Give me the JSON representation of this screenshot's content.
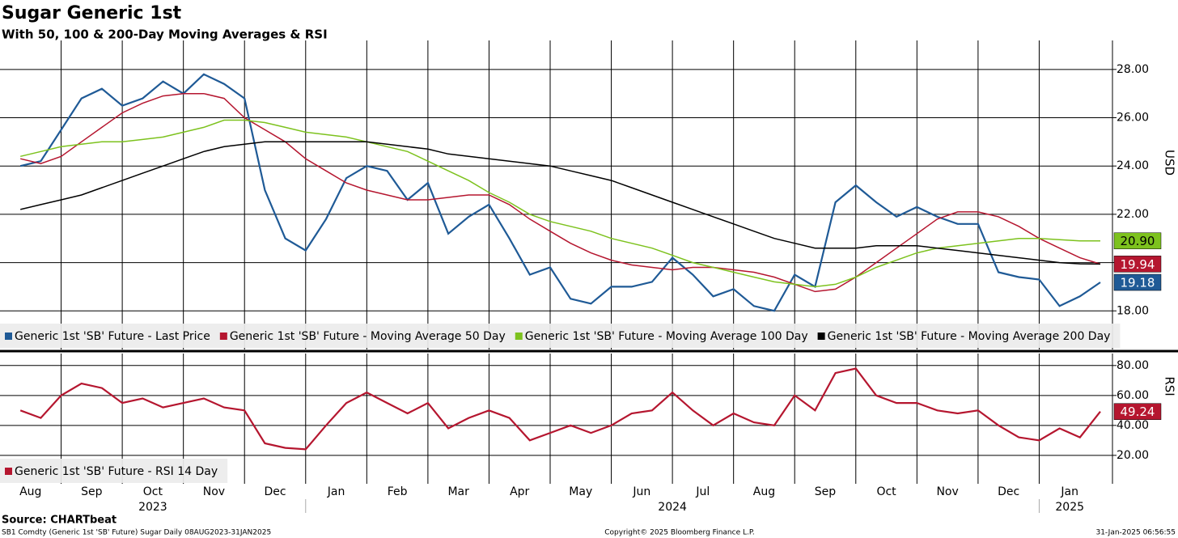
{
  "chart_data": [
    {
      "type": "line",
      "title": "Sugar Generic 1st",
      "subtitle": "With 50, 100 & 200-Day Moving Averages & RSI",
      "y_label": "USD",
      "categories": [
        null,
        "Aug",
        null,
        null,
        "Sep",
        null,
        null,
        "Oct",
        null,
        null,
        "Nov",
        null,
        null,
        "Dec",
        null,
        null,
        "Jan",
        null,
        null,
        "Feb",
        null,
        null,
        "Mar",
        null,
        null,
        "Apr",
        null,
        null,
        "May",
        null,
        null,
        "Jun",
        null,
        null,
        "Jul",
        null,
        null,
        "Aug",
        null,
        null,
        "Sep",
        null,
        null,
        "Oct",
        null,
        null,
        "Nov",
        null,
        null,
        "Dec",
        null,
        null,
        "Jan",
        null
      ],
      "years": [
        "2023",
        "2024",
        "2025"
      ],
      "ylim": [
        16.4,
        29.2
      ],
      "yticks": [
        {
          "value": 18,
          "label": "18.00"
        },
        {
          "value": 20,
          "label": "20.00"
        },
        {
          "value": 22,
          "label": "22.00"
        },
        {
          "value": 24,
          "label": "24.00"
        },
        {
          "value": 26,
          "label": "26.00"
        },
        {
          "value": 28,
          "label": "28.00"
        }
      ],
      "grid": true,
      "legend": "bottom-left",
      "series": [
        {
          "name": "Generic 1st 'SB' Future - Last Price",
          "color": "#1f5a96",
          "badge": true,
          "values": [
            24.0,
            24.2,
            25.5,
            26.8,
            27.2,
            26.5,
            26.8,
            27.5,
            27.0,
            27.8,
            27.4,
            26.8,
            23.0,
            21.0,
            20.5,
            21.8,
            23.5,
            24.0,
            23.8,
            22.6,
            23.3,
            21.2,
            21.9,
            22.4,
            21.0,
            19.5,
            19.8,
            18.5,
            18.3,
            19.0,
            19.0,
            19.2,
            20.2,
            19.5,
            18.6,
            18.9,
            18.2,
            18.0,
            19.5,
            19.0,
            22.5,
            23.2,
            22.5,
            21.9,
            22.3,
            21.9,
            21.6,
            21.6,
            19.6,
            19.4,
            19.3,
            18.2,
            18.6,
            19.18
          ]
        },
        {
          "name": "Generic 1st 'SB' Future - Moving Average 50 Day",
          "color": "#b5162f",
          "badge": true,
          "values": [
            24.3,
            24.1,
            24.4,
            25.0,
            25.6,
            26.2,
            26.6,
            26.9,
            27.0,
            27.0,
            26.8,
            26.0,
            25.5,
            25.0,
            24.3,
            23.8,
            23.3,
            23.0,
            22.8,
            22.6,
            22.6,
            22.7,
            22.8,
            22.8,
            22.4,
            21.8,
            21.3,
            20.8,
            20.4,
            20.1,
            19.9,
            19.8,
            19.7,
            19.8,
            19.8,
            19.7,
            19.6,
            19.4,
            19.1,
            18.8,
            18.9,
            19.4,
            20.0,
            20.6,
            21.2,
            21.8,
            22.1,
            22.1,
            21.9,
            21.5,
            21.0,
            20.6,
            20.2,
            19.94
          ]
        },
        {
          "name": "Generic 1st 'SB' Future - Moving Average 100 Day",
          "color": "#7dc21e",
          "badge": true,
          "values": [
            24.4,
            24.6,
            24.8,
            24.9,
            25.0,
            25.0,
            25.1,
            25.2,
            25.4,
            25.6,
            25.9,
            25.9,
            25.8,
            25.6,
            25.4,
            25.3,
            25.2,
            25.0,
            24.8,
            24.6,
            24.2,
            23.8,
            23.4,
            22.9,
            22.5,
            22.0,
            21.7,
            21.5,
            21.3,
            21.0,
            20.8,
            20.6,
            20.3,
            20.0,
            19.8,
            19.6,
            19.4,
            19.2,
            19.1,
            19.0,
            19.1,
            19.4,
            19.8,
            20.1,
            20.4,
            20.6,
            20.7,
            20.8,
            20.9,
            21.0,
            21.0,
            20.95,
            20.9,
            20.9
          ],
          "value_labels": [
            null,
            null,
            null,
            null,
            null,
            null,
            null,
            null,
            null,
            null,
            null,
            null,
            null,
            null,
            null,
            null,
            null,
            null,
            null,
            null,
            null,
            null,
            null,
            null,
            null,
            null,
            null,
            null,
            null,
            null,
            null,
            null,
            null,
            null,
            null,
            null,
            null,
            null,
            null,
            null,
            null,
            null,
            null,
            null,
            null,
            null,
            null,
            null,
            null,
            null,
            null,
            null,
            null,
            "20.90"
          ]
        },
        {
          "name": "Generic 1st 'SB' Future - Moving Average 200 Day",
          "color": "#000000",
          "badge": false,
          "values": [
            22.2,
            22.4,
            22.6,
            22.8,
            23.1,
            23.4,
            23.7,
            24.0,
            24.3,
            24.6,
            24.8,
            24.9,
            25.0,
            25.0,
            25.0,
            25.0,
            25.0,
            25.0,
            24.9,
            24.8,
            24.7,
            24.5,
            24.4,
            24.3,
            24.2,
            24.1,
            24.0,
            23.8,
            23.6,
            23.4,
            23.1,
            22.8,
            22.5,
            22.2,
            21.9,
            21.6,
            21.3,
            21.0,
            20.8,
            20.6,
            20.6,
            20.6,
            20.7,
            20.7,
            20.7,
            20.6,
            20.5,
            20.4,
            20.3,
            20.2,
            20.1,
            20.0,
            19.95,
            19.94
          ]
        }
      ]
    },
    {
      "type": "line",
      "y_label": "RSI",
      "ylim": [
        1,
        88
      ],
      "yticks": [
        {
          "value": 20,
          "label": "20.00"
        },
        {
          "value": 40,
          "label": "40.00"
        },
        {
          "value": 60,
          "label": "60.00"
        },
        {
          "value": 80,
          "label": "80.00"
        }
      ],
      "grid": true,
      "legend": "bottom-left",
      "series": [
        {
          "name": "Generic 1st 'SB' Future - RSI 14 Day",
          "color": "#b5162f",
          "badge": true,
          "values": [
            50,
            45,
            60,
            68,
            65,
            55,
            58,
            52,
            55,
            58,
            52,
            50,
            28,
            25,
            24,
            40,
            55,
            62,
            55,
            48,
            55,
            38,
            45,
            50,
            45,
            30,
            35,
            40,
            35,
            40,
            48,
            50,
            62,
            50,
            40,
            48,
            42,
            40,
            60,
            50,
            75,
            78,
            60,
            55,
            55,
            50,
            48,
            50,
            40,
            32,
            30,
            38,
            32,
            49.24
          ]
        }
      ]
    }
  ],
  "source": "Source: CHARTbeat",
  "footer": {
    "left": "SB1 Comdty (Generic 1st 'SB' Future) Sugar  Daily 08AUG2023-31JAN2025",
    "center": "Copyright© 2025 Bloomberg Finance L.P.",
    "right": "31-Jan-2025 06:56:55"
  }
}
